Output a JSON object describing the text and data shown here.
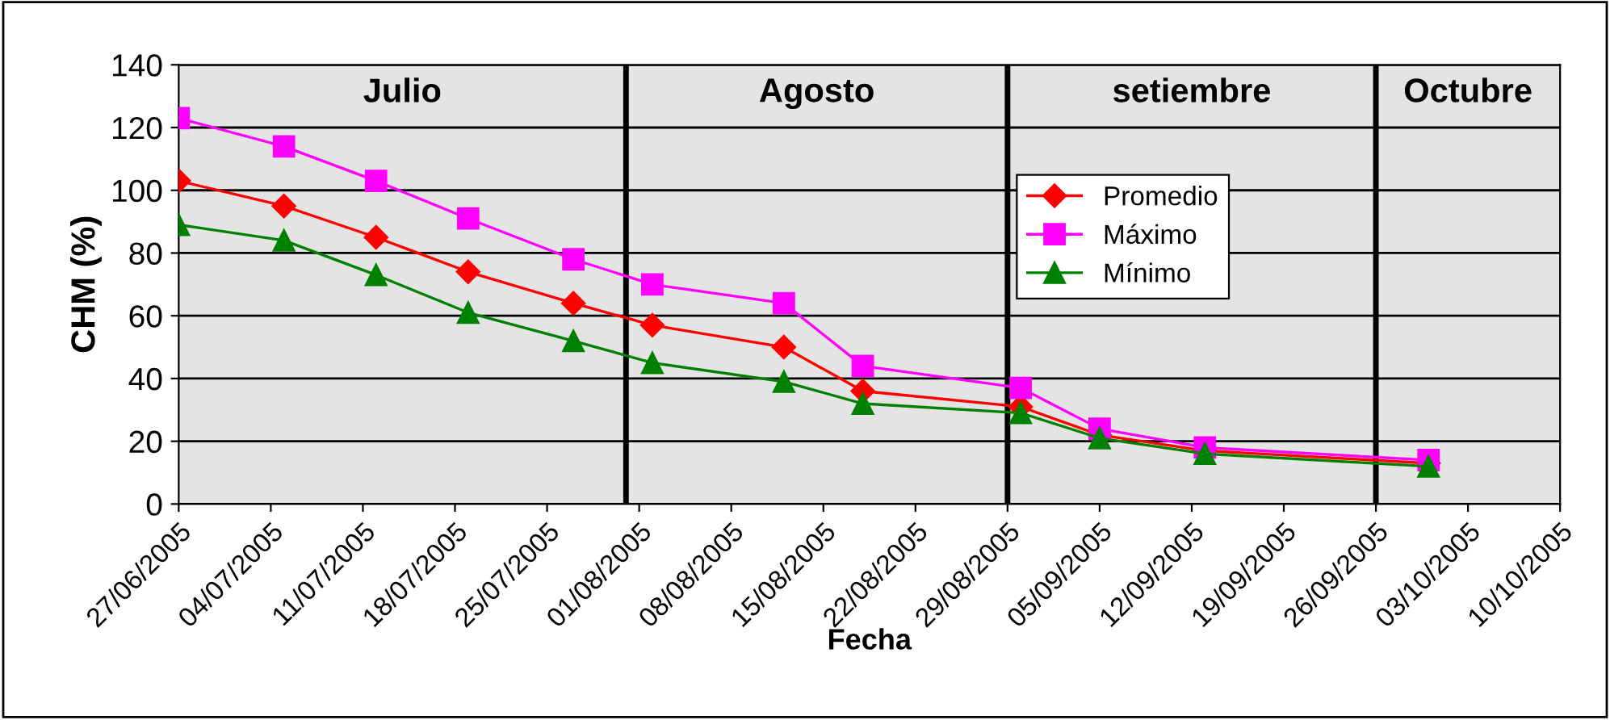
{
  "chart_data": {
    "type": "line",
    "xlabel": "Fecha",
    "ylabel": "CHM (%)",
    "x": [
      "2005-06-27",
      "2005-07-05",
      "2005-07-12",
      "2005-07-19",
      "2005-07-27",
      "2005-08-02",
      "2005-08-12",
      "2005-08-18",
      "2005-08-30",
      "2005-09-05",
      "2005-09-13",
      "2005-09-30"
    ],
    "series": [
      {
        "name": "Promedio",
        "color": "#ff0000",
        "marker": "diamond",
        "values": [
          103,
          95,
          85,
          74,
          64,
          57,
          50,
          36,
          31,
          22,
          17,
          13
        ]
      },
      {
        "name": "Máximo",
        "color": "#ff00ff",
        "marker": "square",
        "values": [
          123,
          114,
          103,
          91,
          78,
          70,
          64,
          44,
          37,
          24,
          18,
          14
        ]
      },
      {
        "name": "Mínimo",
        "color": "#008000",
        "marker": "triangle",
        "values": [
          89,
          84,
          73,
          61,
          52,
          45,
          39,
          32,
          29,
          21,
          16,
          12
        ]
      }
    ],
    "xlim": [
      "2005-06-27",
      "2005-10-10"
    ],
    "xticks": [
      {
        "value": "2005-06-27",
        "label": "27/06/2005"
      },
      {
        "value": "2005-07-04",
        "label": "04/07/2005"
      },
      {
        "value": "2005-07-11",
        "label": "11/07/2005"
      },
      {
        "value": "2005-07-18",
        "label": "18/07/2005"
      },
      {
        "value": "2005-07-25",
        "label": "25/07/2005"
      },
      {
        "value": "2005-08-01",
        "label": "01/08/2005"
      },
      {
        "value": "2005-08-08",
        "label": "08/08/2005"
      },
      {
        "value": "2005-08-15",
        "label": "15/08/2005"
      },
      {
        "value": "2005-08-22",
        "label": "22/08/2005"
      },
      {
        "value": "2005-08-29",
        "label": "29/08/2005"
      },
      {
        "value": "2005-09-05",
        "label": "05/09/2005"
      },
      {
        "value": "2005-09-12",
        "label": "12/09/2005"
      },
      {
        "value": "2005-09-19",
        "label": "19/09/2005"
      },
      {
        "value": "2005-09-26",
        "label": "26/09/2005"
      },
      {
        "value": "2005-10-03",
        "label": "03/10/2005"
      },
      {
        "value": "2005-10-10",
        "label": "10/10/2005"
      }
    ],
    "ylim": [
      0,
      140
    ],
    "yticks": [
      0,
      20,
      40,
      60,
      80,
      100,
      120,
      140
    ],
    "grid": "y",
    "legend": "top right",
    "ref_lines": [
      {
        "axis": "x",
        "value": "2005-07-31",
        "color": "#000000"
      },
      {
        "axis": "x",
        "value": "2005-08-29",
        "color": "#000000"
      },
      {
        "axis": "x",
        "value": "2005-09-26",
        "color": "#000000"
      }
    ],
    "annotations": [
      "Julio",
      "Agosto",
      "setiembre",
      "Octubre"
    ]
  }
}
